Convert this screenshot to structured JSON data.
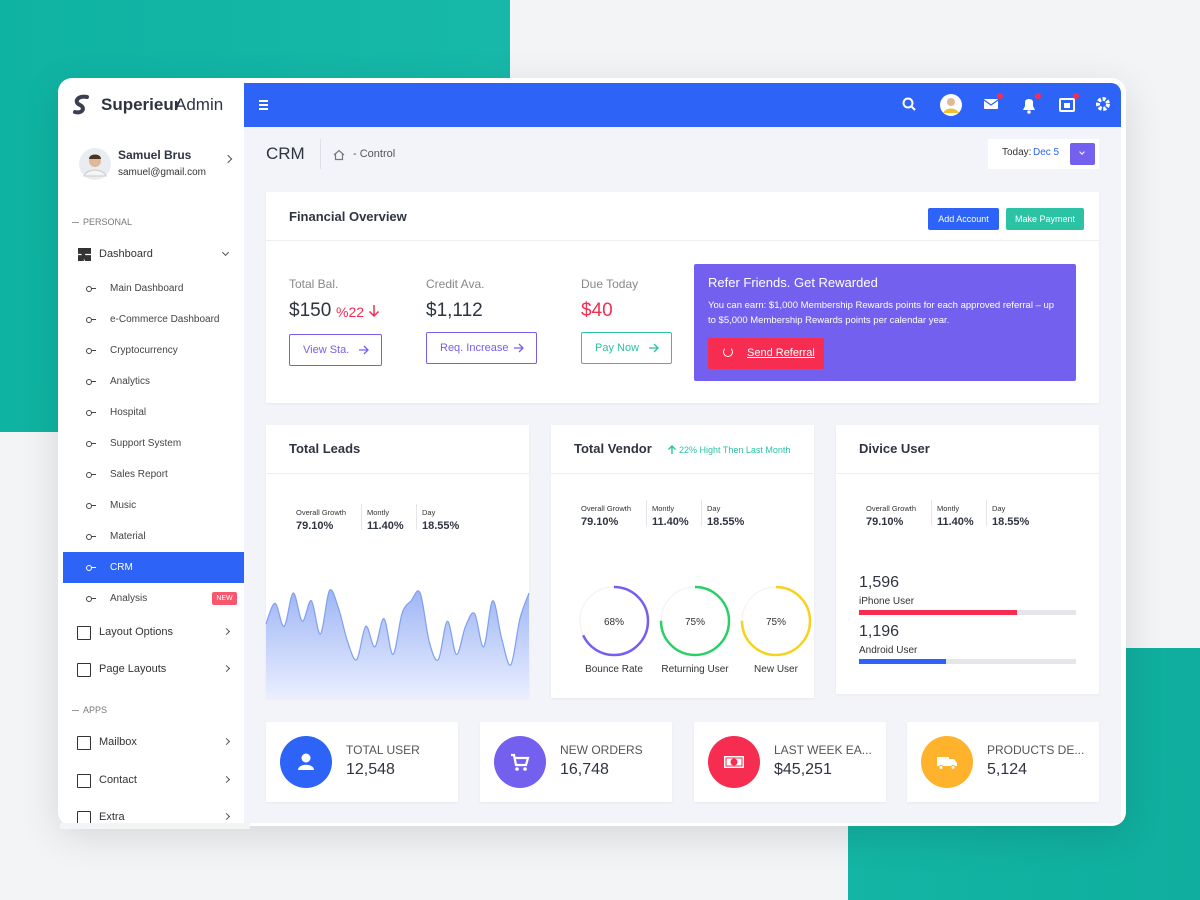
{
  "brand": {
    "name": "Superieur",
    "suffix": "Admin"
  },
  "user": {
    "name": "Samuel Brus",
    "email": "samuel@gmail.com"
  },
  "sidebar": {
    "personal": "PERSONAL",
    "dashboard": "Dashboard",
    "dashboard_items": [
      "Main Dashboard",
      "e-Commerce Dashboard",
      "Cryptocurrency",
      "Analytics",
      "Hospital",
      "Support System",
      "Sales Report",
      "Music",
      "Material",
      "CRM",
      "Analysis"
    ],
    "badge": "NEW",
    "layout_options": "Layout Options",
    "page_layouts": "Page Layouts",
    "apps": "APPS",
    "apps_items": [
      "Mailbox",
      "Contact",
      "Extra"
    ]
  },
  "header": {
    "title": "CRM",
    "breadcrumb": "- Control",
    "today": "Today:",
    "date": "Dec 5"
  },
  "financial": {
    "title": "Financial Overview",
    "actions": [
      "Add Account",
      "Make Payment"
    ],
    "stats": [
      {
        "label": "Total Bal.",
        "value": "$150",
        "change": "%22",
        "button": "View Sta."
      },
      {
        "label": "Credit Ava.",
        "value": "$1,112",
        "button": "Req. Increase"
      },
      {
        "label": "Due Today",
        "value": "$40",
        "button": "Pay Now"
      }
    ],
    "referral": {
      "title": "Refer Friends. Get Rewarded",
      "text": "You can earn: $1,000 Membership Rewards points for each approved referral – up to $5,000 Membership Rewards points per calendar year.",
      "button": "Send Referral"
    }
  },
  "leads": {
    "title": "Total Leads",
    "stats": [
      {
        "label": "Overall Growth",
        "value": "79.10%"
      },
      {
        "label": "Montly",
        "value": "11.40%"
      },
      {
        "label": "Day",
        "value": "18.55%"
      }
    ],
    "area": {
      "ylim": [
        0,
        100
      ],
      "values": [
        58,
        74,
        56,
        82,
        60,
        76,
        50,
        84,
        70,
        44,
        30,
        56,
        40,
        62,
        34,
        66,
        76,
        82,
        44,
        30,
        60,
        34,
        56,
        66,
        40,
        76,
        46,
        26,
        62,
        82
      ]
    }
  },
  "vendor": {
    "title": "Total Vendor",
    "note": "22% Hight Then Last Month",
    "stats": [
      {
        "label": "Overall Growth",
        "value": "79.10%"
      },
      {
        "label": "Montly",
        "value": "11.40%"
      },
      {
        "label": "Day",
        "value": "18.55%"
      }
    ],
    "rings": [
      {
        "label": "Bounce Rate",
        "value": 68,
        "value_label": "68%"
      },
      {
        "label": "Returning User",
        "value": 75,
        "value_label": "75%"
      },
      {
        "label": "New User",
        "value": 75,
        "value_label": "75%"
      }
    ]
  },
  "device": {
    "title": "Divice User",
    "stats": [
      {
        "label": "Overall Growth",
        "value": "79.10%"
      },
      {
        "label": "Montly",
        "value": "11.40%"
      },
      {
        "label": "Day",
        "value": "18.55%"
      }
    ],
    "users": [
      {
        "count": "1,596",
        "label": "iPhone User",
        "progress": 73
      },
      {
        "count": "1,196",
        "label": "Android User",
        "progress": 40
      }
    ]
  },
  "summary": [
    {
      "label": "TOTAL USER",
      "value": "12,548"
    },
    {
      "label": "NEW ORDERS",
      "value": "16,748"
    },
    {
      "label": "LAST WEEK EA...",
      "value": "$45,251"
    },
    {
      "label": "PRODUCTS DE...",
      "value": "5,124"
    }
  ]
}
